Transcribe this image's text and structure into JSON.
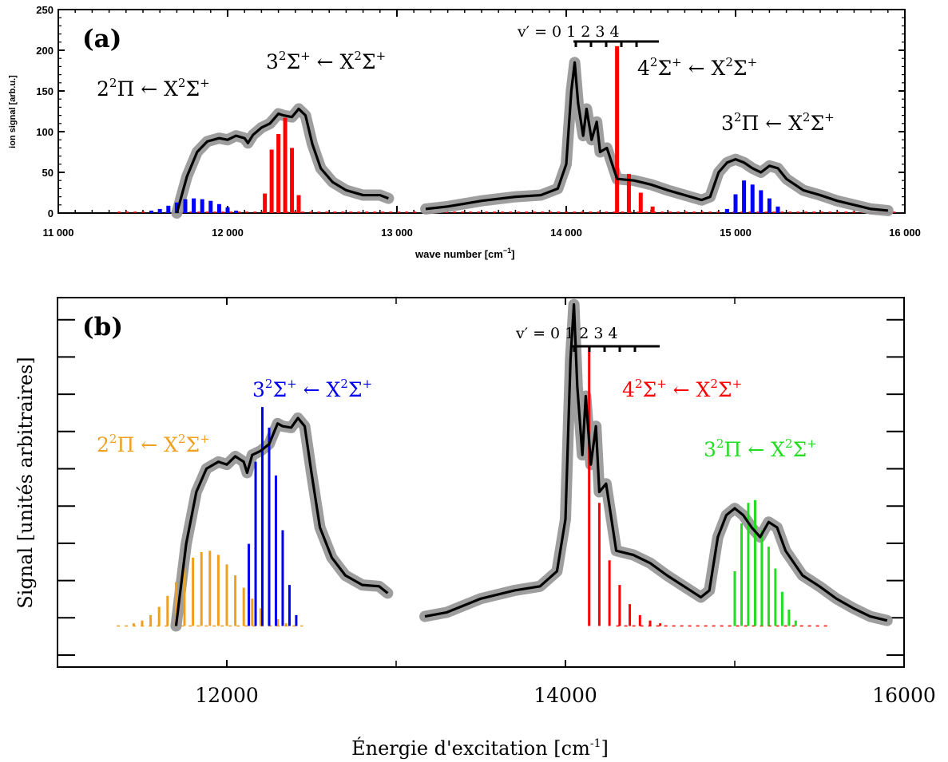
{
  "chart_data": [
    {
      "type": "line",
      "panel_label": "(a)",
      "xlabel": "wave number [cm",
      "xlabel_sup": "−1",
      "xlabel_tail": "]",
      "ylabel": "ion signal [arb.u.]",
      "xlim": [
        11000,
        16000
      ],
      "ylim": [
        0,
        250
      ],
      "x_ticks": [
        11000,
        12000,
        13000,
        14000,
        15000,
        16000
      ],
      "x_tick_labels": [
        "11 000",
        "12 000",
        "13 000",
        "14 000",
        "15 000",
        "16 000"
      ],
      "y_ticks": [
        0,
        50,
        100,
        150,
        200,
        250
      ],
      "y_tick_labels": [
        "0",
        "50",
        "100",
        "150",
        "200",
        "250"
      ],
      "vprime_label": "v′ = 0 1 2 3 4",
      "colors": {
        "exp": "#999999",
        "smooth": "#000000",
        "s3": "#ff0000",
        "p2": "#0000ff",
        "s4": "#ff0000",
        "p3": "#0000ff"
      },
      "annotations": [
        {
          "base": "2",
          "sup1": "2",
          "mid": "Π ← X",
          "sup2": "2",
          "tail": "Σ",
          "sup3": "+",
          "color": "#000000"
        },
        {
          "base": "3",
          "sup1": "2",
          "mid": "Σ",
          "sup1b": "+",
          "mid2": " ← X",
          "sup2": "2",
          "tail": "Σ",
          "sup3": "+",
          "color": "#000000"
        },
        {
          "base": "4",
          "sup1": "2",
          "mid": "Σ",
          "sup1b": "+",
          "mid2": " ← X",
          "sup2": "2",
          "tail": "Σ",
          "sup3": "+",
          "color": "#000000"
        },
        {
          "base": "3",
          "sup1": "2",
          "mid": "Π ← X",
          "sup2": "2",
          "tail": "Σ",
          "sup3": "+",
          "color": "#000000"
        }
      ],
      "experimental_trace": {
        "x": [
          11700,
          11760,
          11820,
          11880,
          11950,
          12000,
          12050,
          12100,
          12120,
          12150,
          12200,
          12250,
          12300,
          12330,
          12380,
          12420,
          12460,
          12500,
          12550,
          12620,
          12700,
          12800,
          12900,
          12950
        ],
        "y": [
          0,
          45,
          75,
          88,
          92,
          90,
          95,
          92,
          86,
          96,
          105,
          110,
          122,
          120,
          118,
          128,
          120,
          85,
          55,
          38,
          28,
          22,
          22,
          18
        ]
      },
      "experimental_trace_2": {
        "x": [
          13170,
          13300,
          13500,
          13700,
          13850,
          13950,
          14000,
          14030,
          14050,
          14070,
          14100,
          14120,
          14150,
          14180,
          14200,
          14240,
          14300,
          14400,
          14500,
          14600,
          14700,
          14800,
          14850,
          14900,
          14950,
          15000,
          15050,
          15100,
          15150,
          15200,
          15250,
          15300,
          15400,
          15500,
          15600,
          15700,
          15800,
          15900
        ],
        "y": [
          5,
          8,
          15,
          20,
          22,
          30,
          60,
          150,
          185,
          135,
          95,
          128,
          90,
          112,
          75,
          80,
          42,
          40,
          35,
          28,
          22,
          16,
          20,
          50,
          62,
          66,
          62,
          55,
          50,
          58,
          55,
          42,
          28,
          22,
          15,
          10,
          5,
          3
        ]
      },
      "stick_series": [
        {
          "name": "2²Π",
          "color": "#0000ff",
          "x": [
            11550,
            11600,
            11650,
            11700,
            11750,
            11800,
            11850,
            11900,
            11950,
            12000,
            12050
          ],
          "y": [
            3,
            5,
            9,
            13,
            17,
            18,
            17,
            15,
            11,
            7,
            3
          ]
        },
        {
          "name": "3²Σ⁺",
          "color": "#ff0000",
          "x": [
            12220,
            12260,
            12300,
            12340,
            12380,
            12420
          ],
          "y": [
            24,
            78,
            97,
            117,
            80,
            22
          ]
        },
        {
          "name": "4²Σ⁺",
          "color": "#ff0000",
          "x": [
            14300,
            14370,
            14440,
            14510
          ],
          "y": [
            205,
            48,
            25,
            8
          ]
        },
        {
          "name": "3²Π",
          "color": "#0000ff",
          "x": [
            14950,
            15000,
            15050,
            15100,
            15150,
            15200,
            15250
          ],
          "y": [
            5,
            23,
            40,
            35,
            28,
            18,
            8
          ]
        }
      ]
    },
    {
      "type": "line",
      "panel_label": "(b)",
      "xlabel": "Énergie d'excitation [cm",
      "xlabel_sup": "-1",
      "xlabel_tail": "]",
      "ylabel": "Signal [unités arbitraires]",
      "xlim": [
        11000,
        16000
      ],
      "ylim": [
        -30,
        240
      ],
      "x_ticks": [
        12000,
        14000,
        16000
      ],
      "x_tick_labels": [
        "12000",
        "14000",
        "16000"
      ],
      "vprime_label": "v′ = 0 1 2 3 4",
      "colors": {
        "exp": "#999999",
        "smooth": "#000000",
        "p2": "#f0a020",
        "s3": "#0000ee",
        "s4": "#ff0000",
        "p3": "#22dd22"
      },
      "annotations": [
        {
          "base": "2",
          "sup1": "2",
          "mid": "Π ← X",
          "sup2": "2",
          "tail": "Σ",
          "sup3": "+",
          "color": "#f0a020"
        },
        {
          "base": "3",
          "sup1": "2",
          "mid": "Σ",
          "sup1b": "+",
          "mid2": " ← X",
          "sup2": "2",
          "tail": "Σ",
          "sup3": "+",
          "color": "#0000ee"
        },
        {
          "base": "4",
          "sup1": "2",
          "mid": "Σ",
          "sup1b": "+",
          "mid2": " ← X",
          "sup2": "2",
          "tail": "Σ",
          "sup3": "+",
          "color": "#ff0000"
        },
        {
          "base": "3",
          "sup1": "2",
          "mid": "Π ← X",
          "sup2": "2",
          "tail": "Σ",
          "sup3": "+",
          "color": "#22dd22"
        }
      ],
      "experimental_trace": {
        "x": [
          11700,
          11760,
          11820,
          11880,
          11950,
          12000,
          12050,
          12100,
          12120,
          12150,
          12200,
          12250,
          12300,
          12330,
          12380,
          12420,
          12460,
          12500,
          12550,
          12620,
          12700,
          12800,
          12900,
          12950
        ],
        "y": [
          0,
          60,
          98,
          115,
          120,
          118,
          124,
          120,
          112,
          125,
          128,
          133,
          148,
          146,
          145,
          152,
          146,
          112,
          72,
          50,
          37,
          30,
          29,
          24
        ]
      },
      "experimental_trace_2": {
        "x": [
          13170,
          13300,
          13500,
          13700,
          13850,
          13950,
          14000,
          14030,
          14050,
          14070,
          14100,
          14120,
          14150,
          14180,
          14200,
          14240,
          14300,
          14400,
          14500,
          14600,
          14700,
          14800,
          14850,
          14900,
          14950,
          15000,
          15050,
          15100,
          15150,
          15200,
          15250,
          15300,
          15400,
          15500,
          15600,
          15700,
          15800,
          15900
        ],
        "y": [
          7,
          10,
          20,
          26,
          29,
          40,
          78,
          195,
          235,
          175,
          125,
          168,
          118,
          146,
          98,
          104,
          55,
          52,
          46,
          37,
          29,
          21,
          26,
          65,
          81,
          86,
          81,
          72,
          65,
          76,
          72,
          55,
          37,
          29,
          20,
          13,
          7,
          4
        ]
      },
      "stick_series": [
        {
          "name": "2²Π",
          "color": "#f0a020",
          "x": [
            11450,
            11500,
            11550,
            11600,
            11650,
            11700,
            11750,
            11800,
            11850,
            11900,
            11950,
            12000,
            12050,
            12100,
            12150,
            12200,
            12250,
            12300,
            12350
          ],
          "y": [
            2,
            4,
            8,
            14,
            22,
            32,
            42,
            50,
            54,
            55,
            52,
            45,
            37,
            28,
            20,
            13,
            8,
            5,
            2
          ]
        },
        {
          "name": "3²Σ⁺",
          "color": "#0000ee",
          "x": [
            12130,
            12170,
            12210,
            12250,
            12290,
            12330,
            12370,
            12410
          ],
          "y": [
            60,
            120,
            160,
            145,
            110,
            70,
            30,
            8
          ]
        },
        {
          "name": "4²Σ⁺",
          "color": "#ff0000",
          "x": [
            14140,
            14200,
            14260,
            14320,
            14380,
            14440,
            14500,
            14560
          ],
          "y": [
            205,
            90,
            48,
            30,
            16,
            8,
            4,
            2
          ]
        },
        {
          "name": "3²Π",
          "color": "#22dd22",
          "x": [
            15000,
            15040,
            15080,
            15120,
            15160,
            15200,
            15240,
            15280,
            15320,
            15360
          ],
          "y": [
            40,
            75,
            90,
            92,
            70,
            58,
            42,
            25,
            12,
            4
          ]
        }
      ]
    }
  ]
}
